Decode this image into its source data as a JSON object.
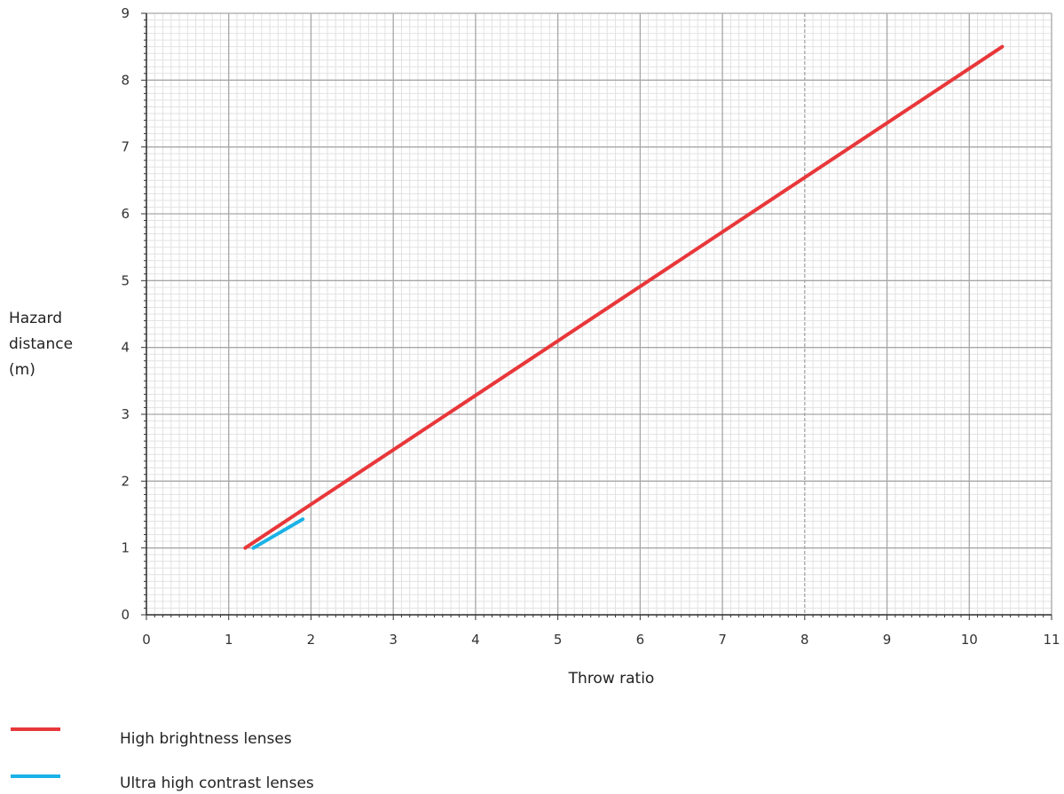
{
  "chart_data": {
    "type": "line",
    "xlabel": "Throw ratio",
    "ylabel_lines": [
      "Hazard",
      "distance",
      "(m)"
    ],
    "xlim": [
      0,
      11
    ],
    "ylim": [
      0,
      9
    ],
    "xticks": [
      "0",
      "1",
      "2",
      "3",
      "4",
      "5",
      "6",
      "7",
      "8",
      "9",
      "10",
      "11"
    ],
    "yticks": [
      "0",
      "1",
      "2",
      "3",
      "4",
      "5",
      "6",
      "7",
      "8",
      "9"
    ],
    "grid": true,
    "legend_position": "bottom-left",
    "series": [
      {
        "name": "High brightness lenses",
        "color": "#e8373a",
        "x": [
          1.2,
          10.4
        ],
        "y": [
          1.0,
          8.5
        ]
      },
      {
        "name": "Ultra high contrast lenses",
        "color": "#1ab2e6",
        "x": [
          1.3,
          1.9
        ],
        "y": [
          1.0,
          1.43
        ]
      }
    ]
  }
}
